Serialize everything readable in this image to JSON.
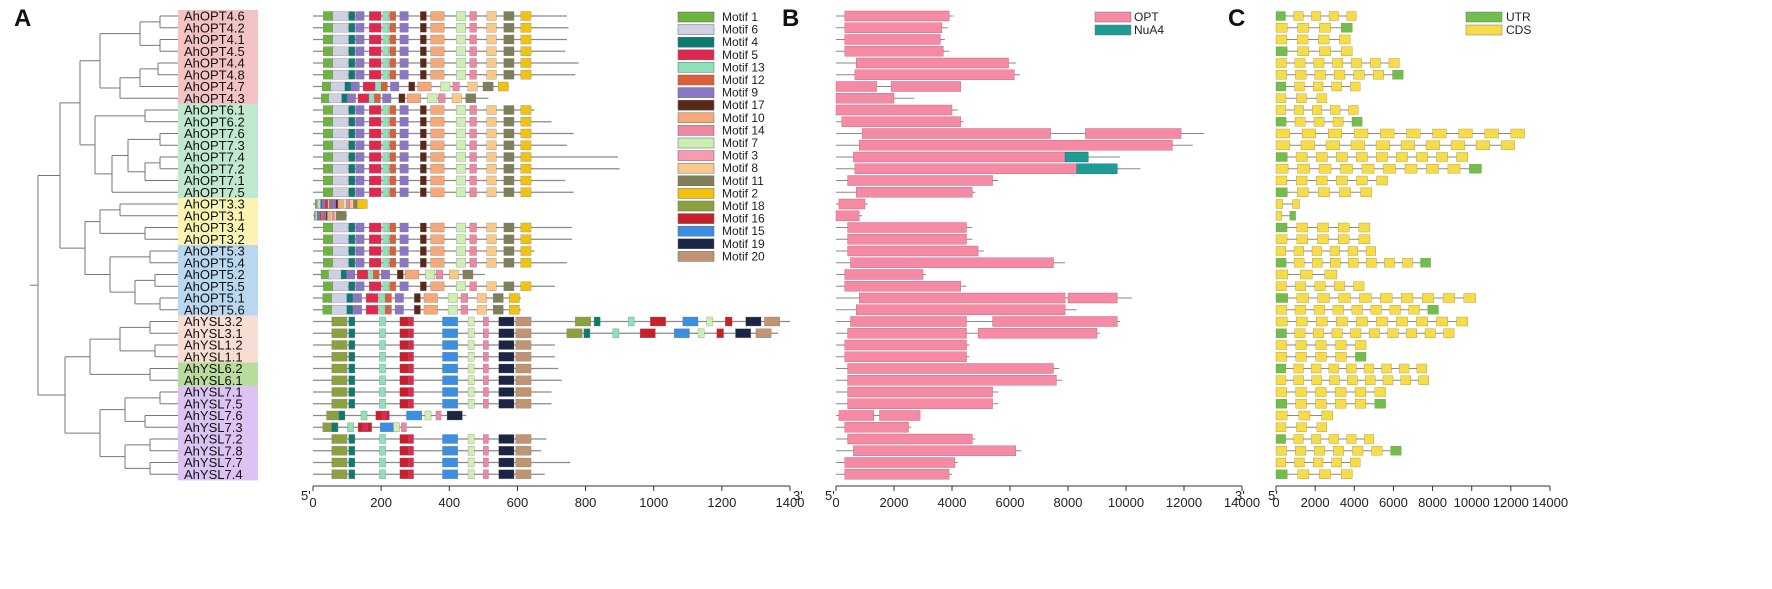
{
  "panels": {
    "a": "A",
    "b": "B",
    "c": "C"
  },
  "end_labels": {
    "five": "5'",
    "three": "3'"
  },
  "colors": {
    "OPT": "#f58aa5",
    "NuA4": "#1e9b95",
    "UTR": "#6fbf4f",
    "CDS": "#f7dc4a",
    "group_OPT4": "#f3c3c3",
    "group_OPT6": "#bfe8cf",
    "group_OPT7": "#bfe8cf",
    "group_OPT3": "#fbf3b1",
    "group_OPT5": "#b9d7ee",
    "group_YSL3": "#f7ddd2",
    "group_YSL6": "#b9dc9d",
    "group_YSL7": "#dcc3f3"
  },
  "genes": [
    {
      "name": "AhOPT4.6",
      "group": "OPT4"
    },
    {
      "name": "AhOPT4.2",
      "group": "OPT4"
    },
    {
      "name": "AhOPT4.1",
      "group": "OPT4"
    },
    {
      "name": "AhOPT4.5",
      "group": "OPT4"
    },
    {
      "name": "AhOPT4.4",
      "group": "OPT4"
    },
    {
      "name": "AhOPT4.8",
      "group": "OPT4"
    },
    {
      "name": "AhOPT4.7",
      "group": "OPT4"
    },
    {
      "name": "AhOPT4.3",
      "group": "OPT4"
    },
    {
      "name": "AhOPT6.1",
      "group": "OPT6"
    },
    {
      "name": "AhOPT6.2",
      "group": "OPT6"
    },
    {
      "name": "AhOPT7.6",
      "group": "OPT7"
    },
    {
      "name": "AhOPT7.3",
      "group": "OPT7"
    },
    {
      "name": "AhOPT7.4",
      "group": "OPT7"
    },
    {
      "name": "AhOPT7.2",
      "group": "OPT7"
    },
    {
      "name": "AhOPT7.1",
      "group": "OPT7"
    },
    {
      "name": "AhOPT7.5",
      "group": "OPT7"
    },
    {
      "name": "AhOPT3.3",
      "group": "OPT3"
    },
    {
      "name": "AhOPT3.1",
      "group": "OPT3"
    },
    {
      "name": "AhOPT3.4",
      "group": "OPT3"
    },
    {
      "name": "AhOPT3.2",
      "group": "OPT3"
    },
    {
      "name": "AhOPT5.3",
      "group": "OPT5"
    },
    {
      "name": "AhOPT5.4",
      "group": "OPT5"
    },
    {
      "name": "AhOPT5.2",
      "group": "OPT5"
    },
    {
      "name": "AhOPT5.5",
      "group": "OPT5"
    },
    {
      "name": "AhOPT5.1",
      "group": "OPT5"
    },
    {
      "name": "AhOPT5.6",
      "group": "OPT5"
    },
    {
      "name": "AhYSL3.2",
      "group": "YSL3"
    },
    {
      "name": "AhYSL3.1",
      "group": "YSL3"
    },
    {
      "name": "AhYSL1.2",
      "group": "YSL3"
    },
    {
      "name": "AhYSL1.1",
      "group": "YSL3"
    },
    {
      "name": "AhYSL6.2",
      "group": "YSL6"
    },
    {
      "name": "AhYSL6.1",
      "group": "YSL6"
    },
    {
      "name": "AhYSL7.1",
      "group": "YSL7"
    },
    {
      "name": "AhYSL7.5",
      "group": "YSL7"
    },
    {
      "name": "AhYSL7.6",
      "group": "YSL7"
    },
    {
      "name": "AhYSL7.3",
      "group": "YSL7"
    },
    {
      "name": "AhYSL7.2",
      "group": "YSL7"
    },
    {
      "name": "AhYSL7.8",
      "group": "YSL7"
    },
    {
      "name": "AhYSL7.7",
      "group": "YSL7"
    },
    {
      "name": "AhYSL7.4",
      "group": "YSL7"
    }
  ],
  "motifs": [
    {
      "name": "Motif 1",
      "color": "#6cb33f"
    },
    {
      "name": "Motif 6",
      "color": "#cfd1e3"
    },
    {
      "name": "Motif 4",
      "color": "#0c7a70"
    },
    {
      "name": "Motif 5",
      "color": "#e0284f"
    },
    {
      "name": "Motif 13",
      "color": "#8ee0b8"
    },
    {
      "name": "Motif 12",
      "color": "#d9603a"
    },
    {
      "name": "Motif 9",
      "color": "#8a76c2"
    },
    {
      "name": "Motif 17",
      "color": "#5a2818"
    },
    {
      "name": "Motif 10",
      "color": "#f5a878"
    },
    {
      "name": "Motif 14",
      "color": "#ef87a3"
    },
    {
      "name": "Motif 7",
      "color": "#cfeeb3"
    },
    {
      "name": "Motif 3",
      "color": "#f79bb1"
    },
    {
      "name": "Motif 8",
      "color": "#f9c98a"
    },
    {
      "name": "Motif 11",
      "color": "#7f7f5a"
    },
    {
      "name": "Motif 2",
      "color": "#f3c20f"
    },
    {
      "name": "Motif 18",
      "color": "#8da03e"
    },
    {
      "name": "Motif 16",
      "color": "#c8202a"
    },
    {
      "name": "Motif 15",
      "color": "#3a8fe0"
    },
    {
      "name": "Motif 19",
      "color": "#1d2545"
    },
    {
      "name": "Motif 20",
      "color": "#c09470"
    }
  ],
  "legend_b": [
    "OPT",
    "NuA4"
  ],
  "legend_c": [
    "UTR",
    "CDS"
  ],
  "axis_a": {
    "min": 0,
    "max": 1400,
    "ticks": [
      "0",
      "200",
      "400",
      "600",
      "800",
      "1000",
      "1200",
      "1400"
    ]
  },
  "axis_b": {
    "min": 0,
    "max": 14000,
    "ticks": [
      "0",
      "2000",
      "4000",
      "6000",
      "8000",
      "10000",
      "12000",
      "14000"
    ]
  },
  "axis_c": {
    "min": 0,
    "max": 14000,
    "ticks": [
      "0",
      "2000",
      "4000",
      "6000",
      "8000",
      "10000",
      "12000",
      "14000"
    ]
  },
  "protein_lengths": [
    745,
    750,
    745,
    740,
    780,
    770,
    575,
    515,
    650,
    700,
    765,
    745,
    895,
    900,
    740,
    765,
    160,
    100,
    760,
    760,
    650,
    745,
    505,
    710,
    610,
    610,
    1400,
    1365,
    710,
    710,
    720,
    730,
    700,
    700,
    450,
    320,
    685,
    670,
    755,
    680
  ],
  "domain_tracks": [
    {
      "len": 4050,
      "opt": [
        [
          300,
          3900
        ]
      ],
      "nua4": []
    },
    {
      "len": 3850,
      "opt": [
        [
          300,
          3650
        ]
      ],
      "nua4": []
    },
    {
      "len": 3750,
      "opt": [
        [
          300,
          3600
        ]
      ],
      "nua4": []
    },
    {
      "len": 3900,
      "opt": [
        [
          300,
          3700
        ]
      ],
      "nua4": []
    },
    {
      "len": 6200,
      "opt": [
        [
          700,
          5950
        ]
      ],
      "nua4": []
    },
    {
      "len": 6350,
      "opt": [
        [
          650,
          6150
        ]
      ],
      "nua4": []
    },
    {
      "len": 4300,
      "opt": [
        [
          0,
          1400
        ],
        [
          1900,
          4300
        ]
      ],
      "nua4": []
    },
    {
      "len": 2700,
      "opt": [
        [
          0,
          2000
        ]
      ],
      "nua4": []
    },
    {
      "len": 4200,
      "opt": [
        [
          0,
          4000
        ]
      ],
      "nua4": []
    },
    {
      "len": 4400,
      "opt": [
        [
          200,
          4300
        ]
      ],
      "nua4": []
    },
    {
      "len": 12700,
      "opt": [
        [
          900,
          7400
        ],
        [
          8600,
          11900
        ]
      ],
      "nua4": []
    },
    {
      "len": 12300,
      "opt": [
        [
          800,
          11600
        ]
      ],
      "nua4": []
    },
    {
      "len": 9800,
      "opt": [
        [
          600,
          7900
        ]
      ],
      "nua4": [
        [
          7900,
          8700
        ]
      ]
    },
    {
      "len": 10500,
      "opt": [
        [
          650,
          8300
        ]
      ],
      "nua4": [
        [
          8300,
          9700
        ]
      ]
    },
    {
      "len": 5600,
      "opt": [
        [
          400,
          5400
        ]
      ],
      "nua4": []
    },
    {
      "len": 4800,
      "opt": [
        [
          700,
          4700
        ]
      ],
      "nua4": []
    },
    {
      "len": 1100,
      "opt": [
        [
          100,
          1000
        ]
      ],
      "nua4": []
    },
    {
      "len": 900,
      "opt": [
        [
          0,
          800
        ]
      ],
      "nua4": []
    },
    {
      "len": 4700,
      "opt": [
        [
          400,
          4500
        ]
      ],
      "nua4": []
    },
    {
      "len": 4700,
      "opt": [
        [
          400,
          4500
        ]
      ],
      "nua4": []
    },
    {
      "len": 5100,
      "opt": [
        [
          400,
          4900
        ]
      ],
      "nua4": []
    },
    {
      "len": 7900,
      "opt": [
        [
          500,
          7500
        ]
      ],
      "nua4": []
    },
    {
      "len": 3100,
      "opt": [
        [
          300,
          3000
        ]
      ],
      "nua4": []
    },
    {
      "len": 4500,
      "opt": [
        [
          300,
          4300
        ]
      ],
      "nua4": []
    },
    {
      "len": 10200,
      "opt": [
        [
          800,
          7900
        ],
        [
          8000,
          9700
        ]
      ],
      "nua4": []
    },
    {
      "len": 8300,
      "opt": [
        [
          700,
          7900
        ]
      ],
      "nua4": []
    },
    {
      "len": 9800,
      "opt": [
        [
          500,
          4500
        ],
        [
          5400,
          9700
        ]
      ],
      "nua4": []
    },
    {
      "len": 9100,
      "opt": [
        [
          400,
          4500
        ],
        [
          4900,
          9000
        ]
      ],
      "nua4": []
    },
    {
      "len": 4600,
      "opt": [
        [
          300,
          4500
        ]
      ],
      "nua4": []
    },
    {
      "len": 4600,
      "opt": [
        [
          300,
          4500
        ]
      ],
      "nua4": []
    },
    {
      "len": 7700,
      "opt": [
        [
          400,
          7500
        ]
      ],
      "nua4": []
    },
    {
      "len": 7800,
      "opt": [
        [
          400,
          7600
        ]
      ],
      "nua4": []
    },
    {
      "len": 5600,
      "opt": [
        [
          400,
          5400
        ]
      ],
      "nua4": []
    },
    {
      "len": 5600,
      "opt": [
        [
          400,
          5400
        ]
      ],
      "nua4": []
    },
    {
      "len": 2900,
      "opt": [
        [
          100,
          1300
        ],
        [
          1500,
          2900
        ]
      ],
      "nua4": []
    },
    {
      "len": 2600,
      "opt": [
        [
          300,
          2500
        ]
      ],
      "nua4": []
    },
    {
      "len": 4800,
      "opt": [
        [
          400,
          4700
        ]
      ],
      "nua4": []
    },
    {
      "len": 6400,
      "opt": [
        [
          600,
          6200
        ]
      ],
      "nua4": []
    },
    {
      "len": 4200,
      "opt": [
        [
          300,
          4100
        ]
      ],
      "nua4": []
    },
    {
      "len": 4000,
      "opt": [
        [
          300,
          3900
        ]
      ],
      "nua4": []
    }
  ],
  "gene_lengths": [
    4100,
    3900,
    3800,
    3900,
    6300,
    6500,
    4300,
    2600,
    4200,
    4400,
    12700,
    12200,
    9800,
    10500,
    5700,
    4900,
    1200,
    1000,
    4800,
    4800,
    5100,
    7900,
    3100,
    4500,
    10200,
    8300,
    9800,
    9100,
    4600,
    4600,
    7700,
    7800,
    5600,
    5600,
    2900,
    2600,
    5000,
    6400,
    4300,
    3900
  ]
}
